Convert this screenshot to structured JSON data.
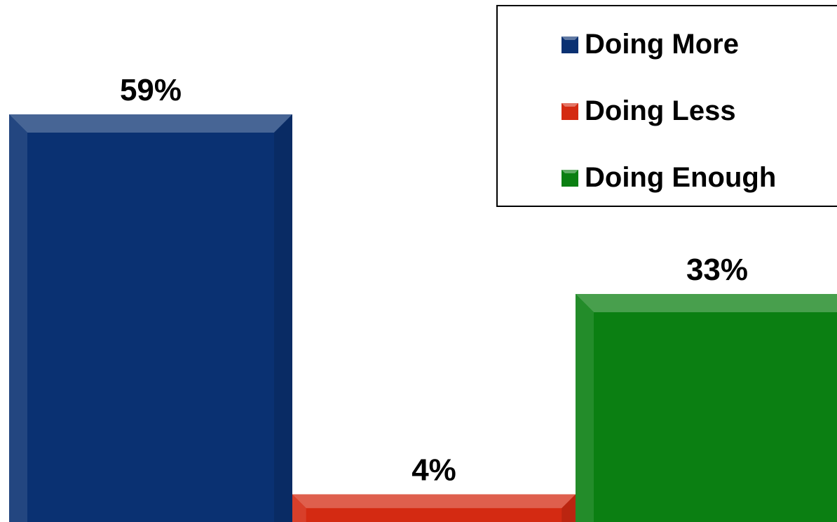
{
  "chart_data": {
    "type": "bar",
    "categories": [
      "Doing More",
      "Doing Less",
      "Doing Enough"
    ],
    "values": [
      59,
      4,
      33
    ],
    "value_labels": [
      "59%",
      "4%",
      "33%"
    ],
    "ylim": [
      0,
      100
    ],
    "grid": false,
    "legend": {
      "position": "top-right",
      "entries": [
        "Doing More",
        "Doing Less",
        "Doing Enough"
      ]
    },
    "colors": [
      "#0a3172",
      "#d42a12",
      "#0b7f12"
    ]
  }
}
